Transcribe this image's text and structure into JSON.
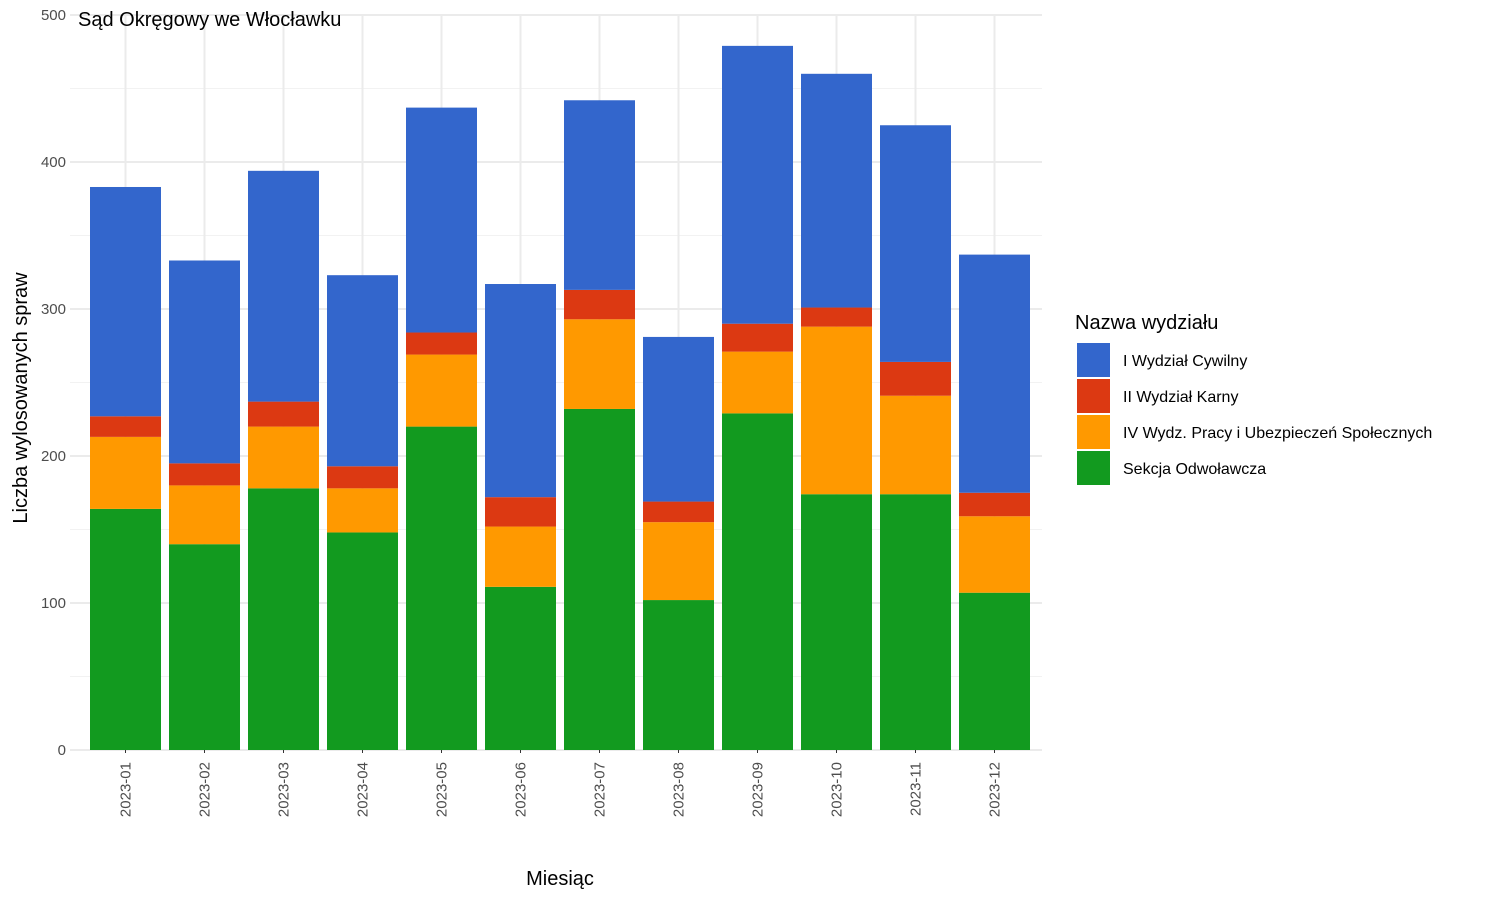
{
  "chart_data": {
    "type": "bar",
    "stacked": true,
    "title": "Sąd Okręgowy we Włocławku",
    "xlabel": "Miesiąc",
    "ylabel": "Liczba wylosowanych spraw",
    "ylim": [
      0,
      500
    ],
    "yticks": [
      "0",
      "100",
      "200",
      "300",
      "400",
      "500"
    ],
    "grid": true,
    "legend_position": "right",
    "legend_title": "Nazwa wydziału",
    "categories": [
      "2023-01",
      "2023-02",
      "2023-03",
      "2023-04",
      "2023-05",
      "2023-06",
      "2023-07",
      "2023-08",
      "2023-09",
      "2023-10",
      "2023-11",
      "2023-12"
    ],
    "series": [
      {
        "name": "Sekcja Odwoławcza",
        "color": "#129a1f",
        "values": [
          164,
          140,
          178,
          148,
          220,
          111,
          232,
          102,
          229,
          174,
          174,
          107
        ]
      },
      {
        "name": "IV Wydz. Pracy i Ubezpieczeń Społecznych",
        "color": "#ff9900",
        "values": [
          49,
          40,
          42,
          30,
          49,
          41,
          61,
          53,
          42,
          114,
          67,
          52
        ]
      },
      {
        "name": "II Wydział Karny",
        "color": "#dc3912",
        "values": [
          14,
          15,
          17,
          15,
          15,
          20,
          20,
          14,
          19,
          13,
          23,
          16
        ]
      },
      {
        "name": "I Wydział Cywilny",
        "color": "#3366cc",
        "values": [
          156,
          138,
          157,
          130,
          153,
          145,
          129,
          112,
          189,
          159,
          161,
          162
        ]
      }
    ],
    "legend_order": [
      "I Wydział Cywilny",
      "II Wydział Karny",
      "IV Wydz. Pracy i Ubezpieczeń Społecznych",
      "Sekcja Odwoławcza"
    ]
  }
}
